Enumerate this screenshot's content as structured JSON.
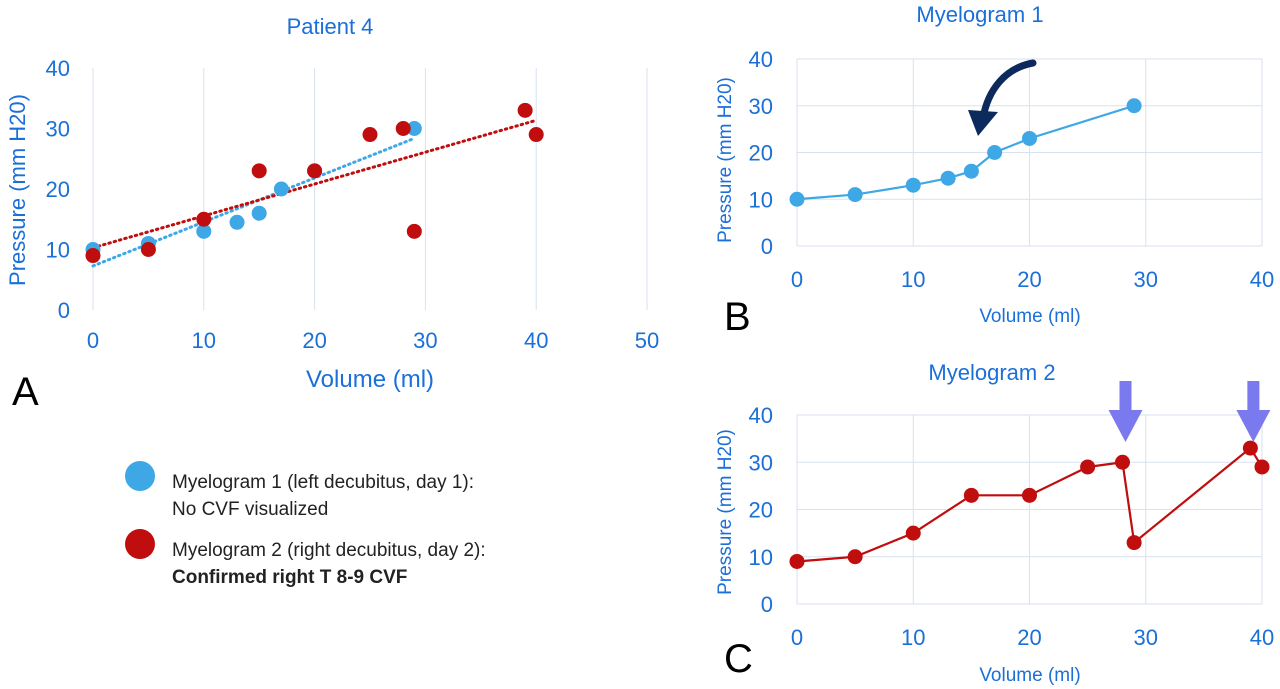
{
  "colors": {
    "text_blue": "#1a6fd8",
    "series_blue": "#3ea8e6",
    "series_red": "#c00d0d",
    "arrow_navy": "#0d2a5c",
    "arrow_violet": "#7b79ee"
  },
  "panel_labels": {
    "a": "A",
    "b": "B",
    "c": "C"
  },
  "legend": {
    "items": [
      {
        "line1": "Myelogram 1 (left decubitus, day 1):",
        "line2": "No CVF visualized",
        "color": "#3ea8e6",
        "bold_line2": false
      },
      {
        "line1": "Myelogram 2 (right decubitus, day 2):",
        "line2": "Confirmed right T 8-9 CVF",
        "color": "#c00d0d",
        "bold_line2": true
      }
    ]
  },
  "chart_data": [
    {
      "type": "scatter",
      "title": "Patient 4",
      "xlabel": "Volume (ml)",
      "ylabel": "Pressure (mm H20)",
      "xlim": [
        0,
        50
      ],
      "ylim": [
        0,
        40
      ],
      "xticks": [
        0,
        10,
        20,
        30,
        40,
        50
      ],
      "yticks": [
        0,
        10,
        20,
        30,
        40
      ],
      "grid": "vertical",
      "trendlines": "linear, dotted",
      "series": [
        {
          "color": "#3ea8e6",
          "x": [
            0,
            5,
            10,
            13,
            15,
            17,
            20,
            29
          ],
          "y": [
            10,
            11,
            13,
            14.5,
            16,
            20,
            23,
            30
          ]
        },
        {
          "color": "#c00d0d",
          "x": [
            0,
            5,
            10,
            15,
            20,
            25,
            28,
            29,
            39,
            40
          ],
          "y": [
            9,
            10,
            15,
            23,
            23,
            29,
            30,
            13,
            33,
            29
          ]
        }
      ]
    },
    {
      "type": "line",
      "title": "Myelogram 1",
      "xlabel": "Volume (ml)",
      "ylabel": "Pressure (mm H20)",
      "xlim": [
        0,
        40
      ],
      "ylim": [
        0,
        40
      ],
      "xticks": [
        0,
        10,
        20,
        30,
        40
      ],
      "yticks": [
        0,
        10,
        20,
        30,
        40
      ],
      "grid": "both",
      "annotation": "curved arrow pointing to inflection near x=15",
      "series": [
        {
          "color": "#3ea8e6",
          "x": [
            0,
            5,
            10,
            13,
            15,
            17,
            20,
            29
          ],
          "y": [
            10,
            11,
            13,
            14.5,
            16,
            20,
            23,
            30
          ]
        }
      ]
    },
    {
      "type": "line",
      "title": "Myelogram 2",
      "xlabel": "Volume (ml)",
      "ylabel": "Pressure (mm H20)",
      "xlim": [
        0,
        40
      ],
      "ylim": [
        0,
        40
      ],
      "xticks": [
        0,
        10,
        20,
        30,
        40
      ],
      "yticks": [
        0,
        10,
        20,
        30,
        40
      ],
      "grid": "both",
      "annotation": "down arrows above x=28 and x=39",
      "arrows_at_x": [
        28,
        39
      ],
      "series": [
        {
          "color": "#c00d0d",
          "x": [
            0,
            5,
            10,
            15,
            20,
            25,
            28,
            29,
            39,
            40
          ],
          "y": [
            9,
            10,
            15,
            23,
            23,
            29,
            30,
            13,
            33,
            29
          ]
        }
      ]
    }
  ]
}
